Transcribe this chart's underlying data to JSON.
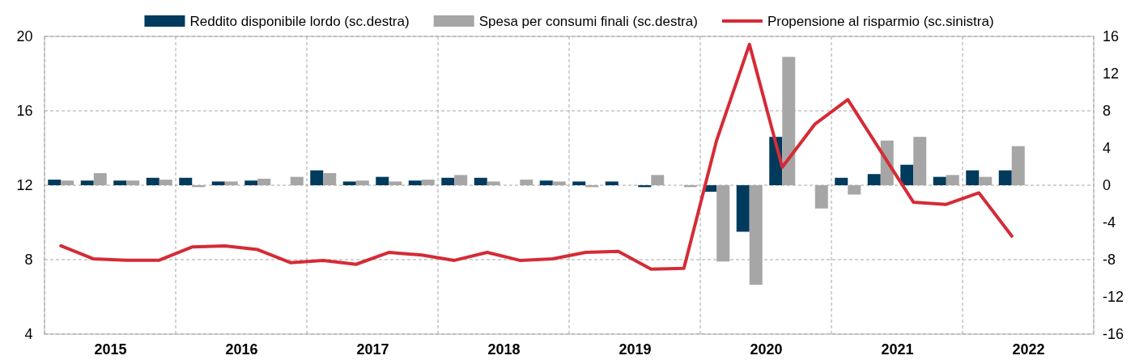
{
  "chart_data": {
    "type": "bar",
    "x": [
      2015.125,
      2015.375,
      2015.625,
      2015.875,
      2016.125,
      2016.375,
      2016.625,
      2016.875,
      2017.125,
      2017.375,
      2017.625,
      2017.875,
      2018.125,
      2018.375,
      2018.625,
      2018.875,
      2019.125,
      2019.375,
      2019.625,
      2019.875,
      2020.125,
      2020.375,
      2020.625,
      2020.875,
      2021.125,
      2021.375,
      2021.625,
      2021.875,
      2022.125,
      2022.375
    ],
    "series": [
      {
        "name": "Reddito disponibile lordo (sc.destra)",
        "axis": "y2",
        "color": "#003a5c",
        "values": [
          0.6,
          0.5,
          0.5,
          0.8,
          0.8,
          0.4,
          0.5,
          0,
          1.6,
          0.4,
          0.9,
          0.5,
          0.8,
          0.8,
          0,
          0.5,
          0.4,
          0.4,
          -0.2,
          0,
          -0.7,
          -5.0,
          5.2,
          0,
          0.8,
          1.2,
          2.2,
          0.9,
          1.6,
          1.6
        ]
      },
      {
        "name": "Spesa per consumi finali (sc.destra)",
        "axis": "y2",
        "color": "#a6a6a6",
        "values": [
          0.5,
          1.3,
          0.5,
          0.6,
          -0.2,
          0.4,
          0.7,
          0.9,
          1.3,
          0.5,
          0.4,
          0.6,
          1.1,
          0.4,
          0.6,
          0.4,
          -0.2,
          null,
          1.1,
          -0.2,
          -8.2,
          -10.7,
          13.8,
          -2.5,
          -1.0,
          4.8,
          5.2,
          1.1,
          0.9,
          4.2
        ]
      },
      {
        "name": "Propensione al risparmio (sc.sinistra)",
        "type": "line",
        "axis": "y",
        "color": "#d52b36",
        "values": [
          8.74,
          8.04,
          7.97,
          7.97,
          8.68,
          8.74,
          8.54,
          7.84,
          7.96,
          7.75,
          8.39,
          8.25,
          7.96,
          8.39,
          7.96,
          8.04,
          8.39,
          8.45,
          7.49,
          7.53,
          14.42,
          19.57,
          12.97,
          15.29,
          16.6,
          13.84,
          11.09,
          10.97,
          11.59,
          9.27
        ]
      }
    ],
    "xlim": [
      2015,
      2023
    ],
    "xticks": [
      {
        "value": 2015,
        "label": null
      },
      {
        "value": 2015.5,
        "label": "2015"
      },
      {
        "value": 2016,
        "label": null
      },
      {
        "value": 2016.5,
        "label": "2016"
      },
      {
        "value": 2017,
        "label": null
      },
      {
        "value": 2017.5,
        "label": "2017"
      },
      {
        "value": 2018,
        "label": null
      },
      {
        "value": 2018.5,
        "label": "2018"
      },
      {
        "value": 2019,
        "label": null
      },
      {
        "value": 2019.5,
        "label": "2019"
      },
      {
        "value": 2020,
        "label": null
      },
      {
        "value": 2020.5,
        "label": "2020"
      },
      {
        "value": 2021,
        "label": null
      },
      {
        "value": 2021.5,
        "label": "2021"
      },
      {
        "value": 2022,
        "label": null
      },
      {
        "value": 2022.5,
        "label": "2022"
      },
      {
        "value": 2023,
        "label": null
      }
    ],
    "ylim": [
      4,
      20
    ],
    "yticks": [
      4,
      8,
      12,
      16,
      20
    ],
    "y2lim": [
      -16,
      16
    ],
    "y2ticks": [
      -16,
      -12,
      -8,
      -4,
      0,
      4,
      8,
      12,
      16
    ],
    "grid": true,
    "legend": "top",
    "line_style": "solid",
    "marker": "none"
  }
}
